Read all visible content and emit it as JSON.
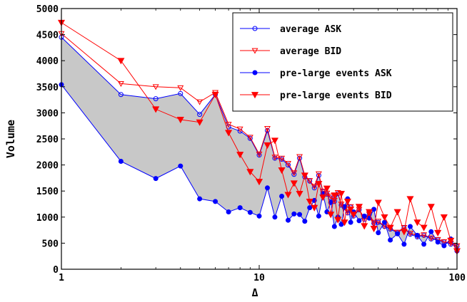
{
  "chart_data": {
    "type": "line",
    "title": "",
    "xlabel": "Δ",
    "ylabel": "Volume",
    "xscale": "log",
    "xlim": [
      1,
      100
    ],
    "ylim": [
      0,
      5000
    ],
    "x_ticks": [
      1,
      10,
      100
    ],
    "x_tick_labels": [
      "1",
      "10",
      "100"
    ],
    "y_ticks": [
      0,
      500,
      1000,
      1500,
      2000,
      2500,
      3000,
      3500,
      4000,
      4500,
      5000
    ],
    "y_tick_labels": [
      "0",
      "500",
      "1000",
      "1500",
      "2000",
      "2500",
      "3000",
      "3500",
      "4000",
      "4500",
      "5000"
    ],
    "grid": false,
    "legend_position": "top-right",
    "fill_between": {
      "upper_series": "average ASK",
      "lower_series": "pre-large events ASK",
      "color": "#c8c8c8"
    },
    "series": [
      {
        "name": "average ASK",
        "color": "#0000ff",
        "marker": "open-circle",
        "x": [
          1,
          2,
          3,
          4,
          5,
          6,
          7,
          8,
          9,
          10,
          11,
          12,
          13,
          14,
          15,
          16,
          17,
          18,
          19,
          20,
          21,
          22,
          23,
          24,
          25,
          26,
          27,
          28,
          29,
          30,
          32,
          34,
          36,
          38,
          40,
          43,
          46,
          50,
          54,
          58,
          63,
          68,
          74,
          80,
          86,
          93,
          100
        ],
        "y": [
          4450,
          3350,
          3270,
          3370,
          2970,
          3350,
          2730,
          2650,
          2510,
          2190,
          2660,
          2130,
          2110,
          2000,
          1820,
          2130,
          1770,
          1690,
          1560,
          1800,
          1490,
          1440,
          1370,
          1300,
          1450,
          1230,
          1180,
          1080,
          1190,
          1020,
          1140,
          960,
          1050,
          880,
          900,
          820,
          770,
          700,
          790,
          670,
          620,
          650,
          580,
          560,
          520,
          480,
          440
        ]
      },
      {
        "name": "average BID",
        "color": "#ff0000",
        "marker": "open-triangle-down",
        "x": [
          1,
          2,
          3,
          4,
          5,
          6,
          7,
          8,
          9,
          10,
          11,
          12,
          13,
          14,
          15,
          16,
          17,
          18,
          19,
          20,
          21,
          22,
          23,
          24,
          25,
          26,
          27,
          28,
          29,
          30,
          32,
          34,
          36,
          38,
          40,
          43,
          46,
          50,
          54,
          58,
          63,
          68,
          74,
          80,
          86,
          93,
          100
        ],
        "y": [
          4520,
          3560,
          3500,
          3480,
          3210,
          3390,
          2780,
          2690,
          2530,
          2210,
          2700,
          2150,
          2130,
          2030,
          1850,
          2160,
          1800,
          1700,
          1590,
          1830,
          1500,
          1460,
          1400,
          1320,
          1470,
          1250,
          1200,
          1100,
          1200,
          1040,
          1150,
          980,
          1060,
          900,
          920,
          830,
          790,
          710,
          800,
          690,
          640,
          660,
          600,
          570,
          530,
          500,
          450
        ]
      },
      {
        "name": "pre-large events ASK",
        "color": "#0000ff",
        "marker": "filled-circle",
        "x": [
          1,
          2,
          3,
          4,
          5,
          6,
          7,
          8,
          9,
          10,
          11,
          12,
          13,
          14,
          15,
          16,
          17,
          18,
          19,
          20,
          21,
          22,
          23,
          24,
          25,
          26,
          27,
          28,
          29,
          30,
          32,
          34,
          36,
          38,
          40,
          43,
          46,
          50,
          54,
          58,
          63,
          68,
          74,
          80,
          86,
          93,
          100
        ],
        "y": [
          3540,
          2070,
          1740,
          1980,
          1350,
          1300,
          1100,
          1180,
          1090,
          1020,
          1560,
          1000,
          1400,
          940,
          1060,
          1050,
          920,
          1180,
          1320,
          1020,
          1450,
          1100,
          1280,
          820,
          1000,
          860,
          1200,
          1350,
          900,
          1100,
          930,
          1020,
          980,
          1150,
          700,
          900,
          560,
          680,
          480,
          820,
          650,
          480,
          720,
          520,
          450,
          580,
          350
        ]
      },
      {
        "name": "pre-large events BID",
        "color": "#ff0000",
        "marker": "filled-triangle-down",
        "x": [
          1,
          2,
          3,
          4,
          5,
          6,
          7,
          8,
          9,
          10,
          11,
          12,
          13,
          14,
          15,
          16,
          17,
          18,
          19,
          20,
          21,
          22,
          23,
          24,
          25,
          26,
          27,
          28,
          29,
          30,
          32,
          34,
          36,
          38,
          40,
          43,
          46,
          50,
          54,
          58,
          63,
          68,
          74,
          80,
          86,
          93,
          100
        ],
        "y": [
          4730,
          4000,
          3070,
          2870,
          2820,
          3350,
          2620,
          2200,
          1870,
          1680,
          2380,
          2470,
          1900,
          1430,
          1650,
          1450,
          1800,
          1300,
          1180,
          1640,
          1380,
          1550,
          1050,
          1420,
          950,
          1450,
          900,
          1300,
          1150,
          1050,
          1200,
          830,
          1100,
          780,
          1280,
          1000,
          800,
          1100,
          720,
          1350,
          900,
          800,
          1200,
          700,
          1000,
          550,
          350
        ]
      }
    ]
  }
}
